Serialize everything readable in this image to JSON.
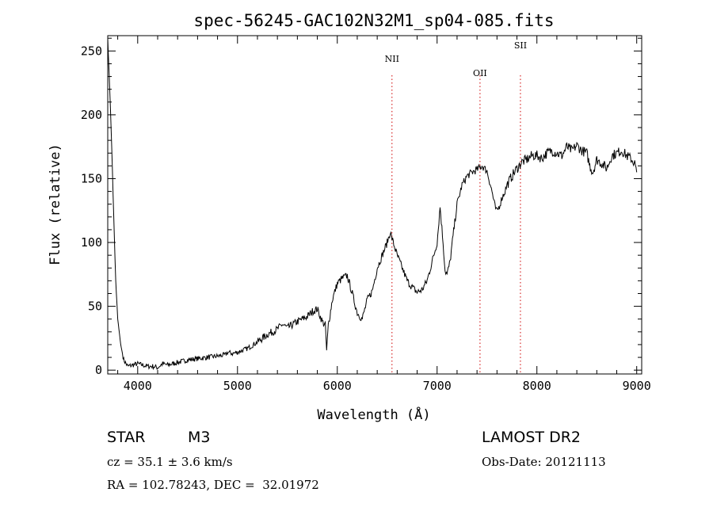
{
  "chart_data": {
    "type": "line",
    "title": "spec-56245-GAC102N32M1_sp04-085.fits",
    "xlabel": "Wavelength (Å)",
    "ylabel": "Flux (relative)",
    "xlim": [
      3700,
      9050
    ],
    "ylim": [
      -3,
      262
    ],
    "xticks": [
      "4000",
      "5000",
      "6000",
      "7000",
      "8000",
      "9000"
    ],
    "yticks": [
      "0",
      "50",
      "100",
      "150",
      "200",
      "250"
    ],
    "grid": false,
    "lines": [
      {
        "label": "NII",
        "x": 6548
      },
      {
        "label": "OII",
        "x": 7430
      },
      {
        "label": "SII",
        "x": 7835
      }
    ],
    "series": [
      {
        "x": [
          3700,
          3720,
          3740,
          3760,
          3780,
          3800,
          3830,
          3860,
          3900,
          3950,
          4000,
          4050,
          4100,
          4150,
          4200,
          4250,
          4300,
          4400,
          4500,
          4600,
          4700,
          4800,
          4880,
          4900,
          4950,
          5000,
          5100,
          5200,
          5300,
          5400,
          5450,
          5500,
          5600,
          5700,
          5750,
          5800,
          5850,
          5880,
          5893,
          5910,
          5950,
          6000,
          6050,
          6100,
          6150,
          6200,
          6250,
          6300,
          6350,
          6400,
          6450,
          6500,
          6530,
          6560,
          6600,
          6650,
          6700,
          6750,
          6800,
          6850,
          6900,
          6950,
          7000,
          7030,
          7060,
          7080,
          7100,
          7130,
          7160,
          7200,
          7250,
          7300,
          7350,
          7400,
          7450,
          7500,
          7550,
          7580,
          7600,
          7630,
          7650,
          7680,
          7700,
          7750,
          7800,
          7850,
          7900,
          7950,
          8000,
          8050,
          8100,
          8150,
          8200,
          8250,
          8300,
          8350,
          8400,
          8450,
          8500,
          8530,
          8560,
          8600,
          8650,
          8700,
          8750,
          8800,
          8850,
          8900,
          8950,
          8980,
          9000
        ],
        "y": [
          260,
          220,
          175,
          120,
          70,
          40,
          20,
          8,
          3,
          4,
          5,
          4,
          3,
          3,
          2,
          5,
          4,
          6,
          8,
          9,
          10,
          11,
          12,
          14,
          13,
          14,
          17,
          22,
          28,
          32,
          36,
          33,
          38,
          42,
          46,
          48,
          38,
          35,
          15,
          35,
          55,
          68,
          72,
          74,
          60,
          45,
          40,
          55,
          62,
          80,
          90,
          100,
          108,
          100,
          90,
          80,
          70,
          65,
          61,
          63,
          70,
          85,
          100,
          128,
          100,
          78,
          75,
          85,
          105,
          130,
          145,
          152,
          155,
          157,
          160,
          156,
          140,
          128,
          124,
          130,
          135,
          140,
          145,
          152,
          158,
          163,
          165,
          168,
          168,
          166,
          170,
          172,
          170,
          168,
          175,
          172,
          176,
          172,
          170,
          160,
          155,
          165,
          162,
          158,
          168,
          170,
          172,
          168,
          165,
          162,
          155
        ]
      }
    ]
  },
  "info": {
    "object_class": "STAR",
    "subclass": "M3",
    "survey": "LAMOST DR2",
    "cz": "cz = 35.1 ± 3.6 km/s",
    "obs_date": "Obs-Date: 20121113",
    "coords": "RA = 102.78243, DEC =  32.01972"
  }
}
